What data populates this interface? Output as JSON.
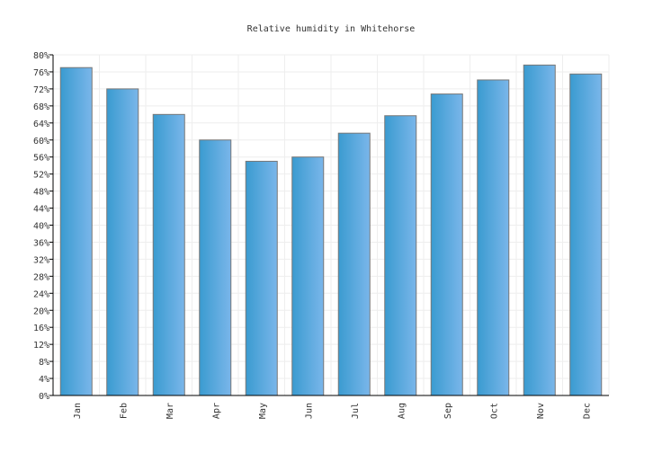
{
  "chart_data": {
    "type": "bar",
    "title": "Relative humidity in Whitehorse",
    "xlabel": "",
    "ylabel": "",
    "categories": [
      "Jan",
      "Feb",
      "Mar",
      "Apr",
      "May",
      "Jun",
      "Jul",
      "Aug",
      "Sep",
      "Oct",
      "Nov",
      "Dec"
    ],
    "values": [
      77,
      72,
      66,
      60,
      55,
      56,
      61.6,
      65.7,
      70.8,
      74.1,
      77.6,
      75.5
    ],
    "ylim": [
      0,
      80
    ],
    "ytick_step": 4,
    "ytick_format": "%",
    "grid": true,
    "colors": {
      "bar_start": "#3a9bd0",
      "bar_end": "#7ab6ea",
      "bar_stroke": "#777777",
      "grid": "#eeeeee",
      "axis": "#000000"
    }
  }
}
